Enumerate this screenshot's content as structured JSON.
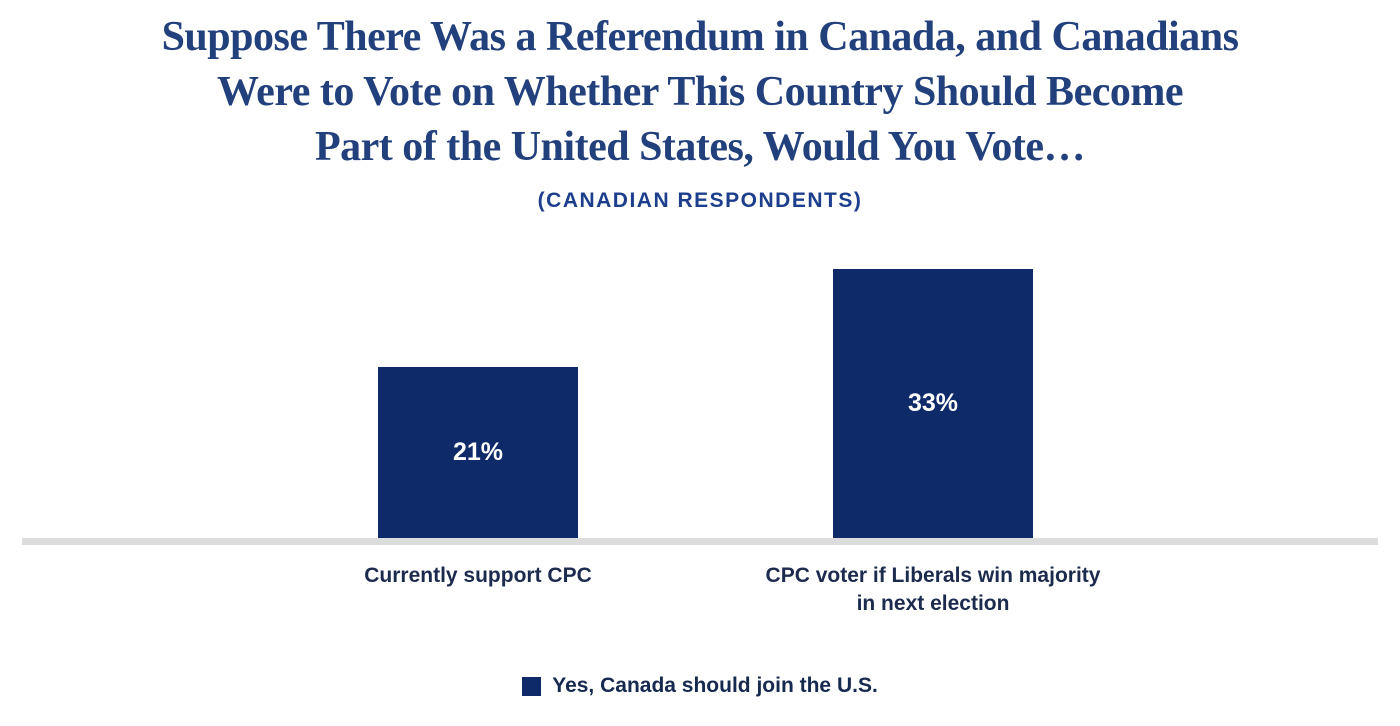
{
  "title": {
    "lines": [
      "Suppose There Was a Referendum in Canada, and Canadians",
      "Were to Vote on Whether This Country Should Become",
      "Part of the United States, Would You Vote…"
    ]
  },
  "subtitle": "(CANADIAN RESPONDENTS)",
  "legend": {
    "label": "Yes, Canada should join the U.S."
  },
  "colors": {
    "bar_fill": "#0f2a68",
    "title_text": "#22407b",
    "subtitle_text": "#1d3e8c",
    "category_text": "#1c2b4d",
    "value_label_text": "#ffffff",
    "axis_line": "#dcdcdc"
  },
  "chart_data": {
    "type": "bar",
    "title": "Suppose There Was a Referendum in Canada, and Canadians Were to Vote on Whether This Country Should Become Part of the United States, Would You Vote…",
    "subtitle": "(CANADIAN RESPONDENTS)",
    "categories": [
      "Currently support CPC",
      "CPC voter if Liberals win majority\nin next election"
    ],
    "series": [
      {
        "name": "Yes, Canada should join the U.S.",
        "values": [
          21,
          33
        ],
        "color": "#0f2a68"
      }
    ],
    "value_labels": [
      "21%",
      "33%"
    ],
    "value_label_position": "inside-center",
    "xlabel": "",
    "ylabel": "",
    "ylim": [
      0,
      40
    ],
    "grid": false,
    "y_axis_visible": false,
    "legend_position": "bottom"
  }
}
